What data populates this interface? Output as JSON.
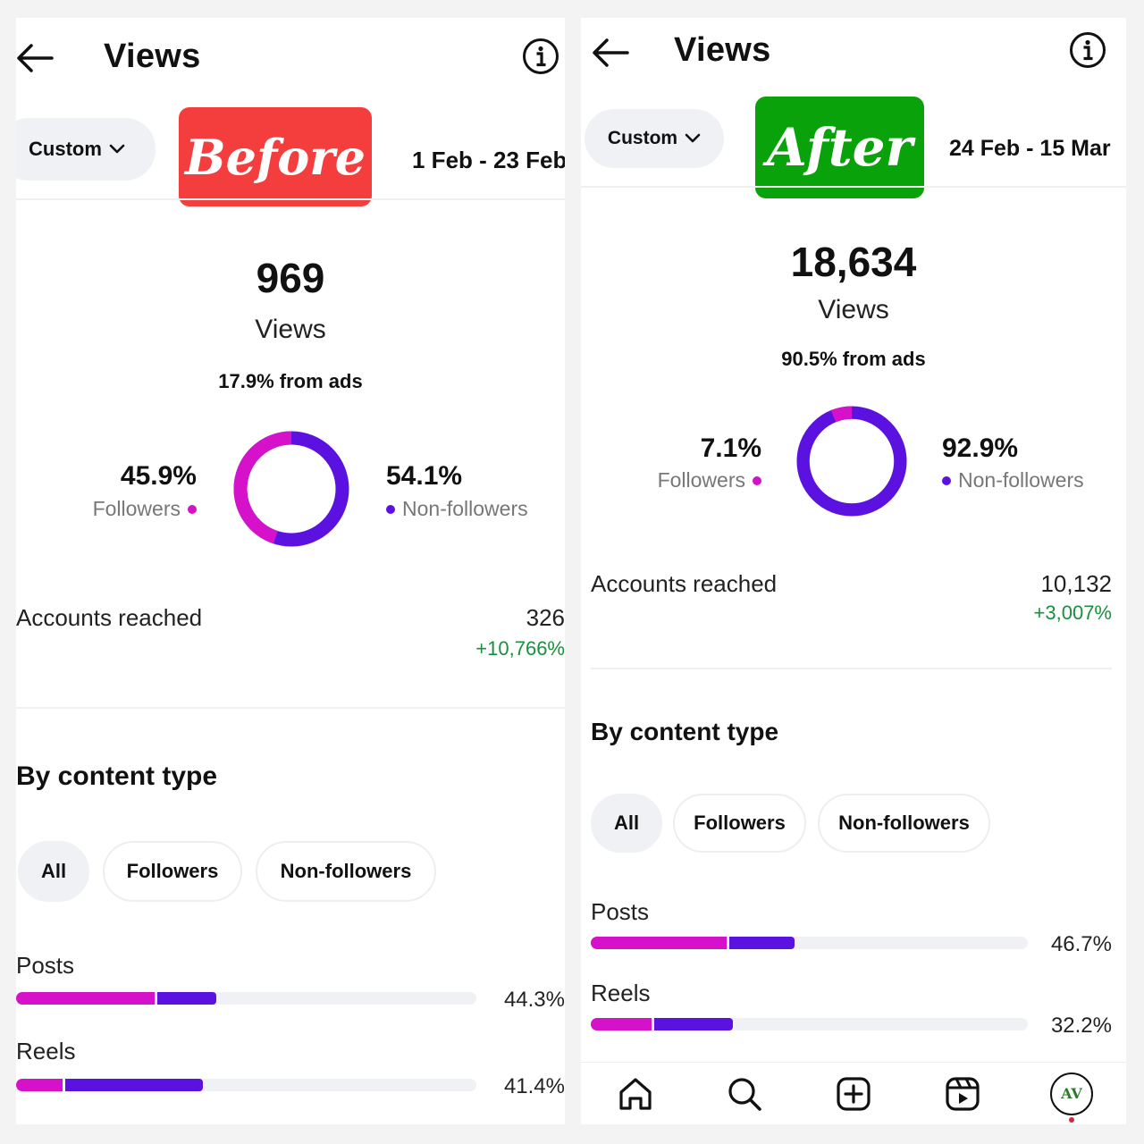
{
  "colors": {
    "followers": "#d512c9",
    "non_followers": "#5b12e0",
    "positive": "#1a8f3c",
    "before_tag": "#f43d3d",
    "after_tag": "#0aa20a"
  },
  "before": {
    "header": {
      "title": "Views"
    },
    "filter": {
      "label": "Custom"
    },
    "tag": "Before",
    "date_range": "1 Feb - 23 Feb",
    "views": {
      "value": "969",
      "label": "Views",
      "ads": "17.9% from ads"
    },
    "followers": {
      "pct": "45.9%",
      "label": "Followers",
      "fraction": 0.459
    },
    "non_followers": {
      "pct": "54.1%",
      "label": "Non-followers",
      "fraction": 0.541
    },
    "accounts_reached": {
      "label": "Accounts reached",
      "value": "326",
      "delta": "+10,766%"
    },
    "section_title": "By content type",
    "chips": [
      "All",
      "Followers",
      "Non-followers"
    ],
    "bars": [
      {
        "label": "Posts",
        "pct": "44.3%",
        "followers": 0.3,
        "non_followers": 0.13
      },
      {
        "label": "Reels",
        "pct": "41.4%",
        "followers": 0.1,
        "non_followers": 0.3
      }
    ]
  },
  "after": {
    "header": {
      "title": "Views"
    },
    "filter": {
      "label": "Custom"
    },
    "tag": "After",
    "date_range": "24 Feb - 15 Mar",
    "views": {
      "value": "18,634",
      "label": "Views",
      "ads": "90.5% from ads"
    },
    "followers": {
      "pct": "7.1%",
      "label": "Followers",
      "fraction": 0.071
    },
    "non_followers": {
      "pct": "92.9%",
      "label": "Non-followers",
      "fraction": 0.929
    },
    "accounts_reached": {
      "label": "Accounts reached",
      "value": "10,132",
      "delta": "+3,007%"
    },
    "section_title": "By content type",
    "chips": [
      "All",
      "Followers",
      "Non-followers"
    ],
    "bars": [
      {
        "label": "Posts",
        "pct": "46.7%",
        "followers": 0.31,
        "non_followers": 0.15
      },
      {
        "label": "Reels",
        "pct": "32.2%",
        "followers": 0.14,
        "non_followers": 0.18
      }
    ],
    "nav": {
      "items": [
        "home-icon",
        "search-icon",
        "create-icon",
        "reels-icon",
        "profile-avatar"
      ],
      "avatar_initials": "AV"
    }
  }
}
